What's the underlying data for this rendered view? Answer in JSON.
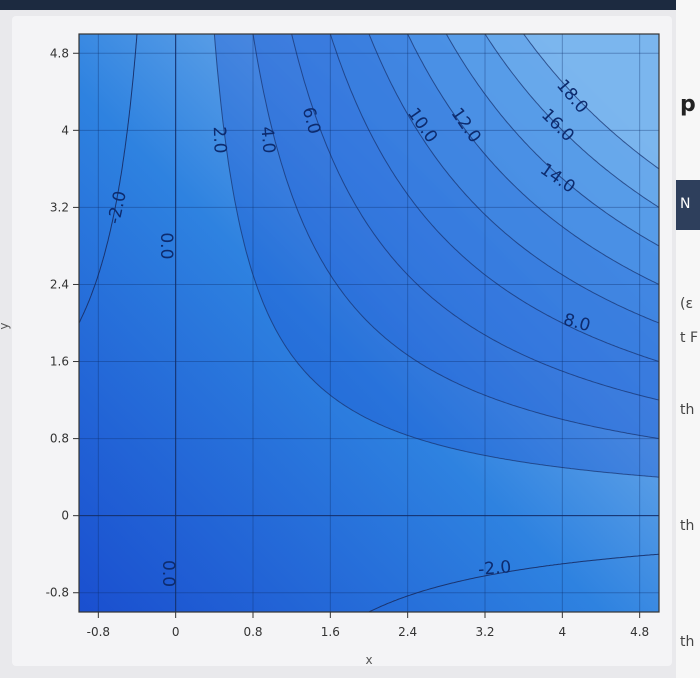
{
  "chart_data": {
    "type": "contour",
    "title": "",
    "xlabel": "x",
    "ylabel": "y",
    "xlim": [
      -1.0,
      5.0
    ],
    "ylim": [
      -1.0,
      5.0
    ],
    "xticks": [
      "-0.8",
      "0",
      "0.8",
      "1.6",
      "2.4",
      "3.2",
      "4",
      "4.8"
    ],
    "yticks": [
      "4.8",
      "4",
      "3.2",
      "2.4",
      "1.6",
      "0.8",
      "0",
      "-0.8"
    ],
    "grid": true,
    "contour_levels": [
      -2.0,
      0.0,
      2.0,
      4.0,
      6.0,
      8.0,
      10.0,
      12.0,
      14.0,
      16.0,
      18.0
    ],
    "contour_labels": [
      {
        "text": "-2.0",
        "x": -0.6,
        "y": 3.2,
        "rotate": -78
      },
      {
        "text": "0.0",
        "x": -0.1,
        "y": 2.8,
        "rotate": 90
      },
      {
        "text": "2.0",
        "x": 0.45,
        "y": 3.9,
        "rotate": 88
      },
      {
        "text": "4.0",
        "x": 0.95,
        "y": 3.9,
        "rotate": 85
      },
      {
        "text": "6.0",
        "x": 1.4,
        "y": 4.1,
        "rotate": 75
      },
      {
        "text": "10.0",
        "x": 2.55,
        "y": 4.05,
        "rotate": 55
      },
      {
        "text": "12.0",
        "x": 3.0,
        "y": 4.05,
        "rotate": 55
      },
      {
        "text": "18.0",
        "x": 4.1,
        "y": 4.35,
        "rotate": 50
      },
      {
        "text": "16.0",
        "x": 3.95,
        "y": 4.05,
        "rotate": 45
      },
      {
        "text": "14.0",
        "x": 3.95,
        "y": 3.5,
        "rotate": 35
      },
      {
        "text": "8.0",
        "x": 4.15,
        "y": 2.0,
        "rotate": 15
      },
      {
        "text": "-2.0",
        "x": 3.3,
        "y": -0.55,
        "rotate": -5
      },
      {
        "text": "0.0",
        "x": -0.08,
        "y": -0.6,
        "rotate": 90
      }
    ]
  },
  "right_margin": {
    "letters": [
      "p",
      "N",
      "(ɛ",
      "t F",
      "th",
      "th",
      "th"
    ]
  }
}
